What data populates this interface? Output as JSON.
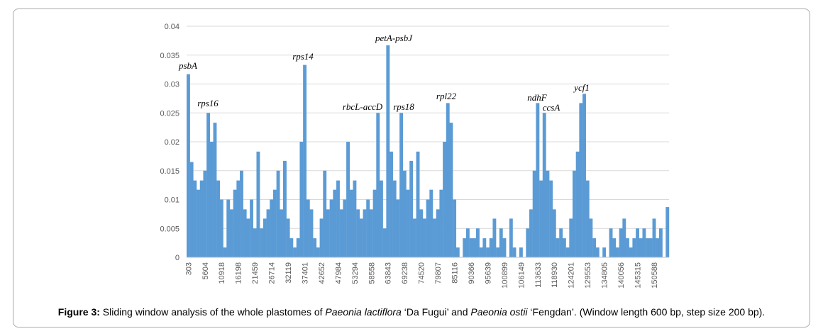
{
  "chart_data": {
    "type": "bar",
    "categories": [
      "303",
      null,
      null,
      null,
      null,
      "5604",
      null,
      null,
      null,
      null,
      "10918",
      null,
      null,
      null,
      null,
      "16198",
      null,
      null,
      null,
      null,
      "21459",
      null,
      null,
      null,
      null,
      "26714",
      null,
      null,
      null,
      null,
      "32119",
      null,
      null,
      null,
      null,
      "37401",
      null,
      null,
      null,
      null,
      "42652",
      null,
      null,
      null,
      null,
      "47984",
      null,
      null,
      null,
      null,
      "53294",
      null,
      null,
      null,
      null,
      "58558",
      null,
      null,
      null,
      null,
      "63843",
      null,
      null,
      null,
      null,
      "69238",
      null,
      null,
      null,
      null,
      "74520",
      null,
      null,
      null,
      null,
      "79807",
      null,
      null,
      null,
      null,
      "85116",
      null,
      null,
      null,
      null,
      "90366",
      null,
      null,
      null,
      null,
      "95639",
      null,
      null,
      null,
      null,
      "100899",
      null,
      null,
      null,
      null,
      "106149",
      null,
      null,
      null,
      null,
      "113633",
      null,
      null,
      null,
      null,
      "118930",
      null,
      null,
      null,
      null,
      "124201",
      null,
      null,
      null,
      null,
      "129553",
      null,
      null,
      null,
      null,
      "134805",
      null,
      null,
      null,
      null,
      "140056",
      null,
      null,
      null,
      null,
      "145315",
      null,
      null,
      null,
      null,
      "150588",
      null,
      null,
      null,
      null
    ],
    "values": [
      0.0317,
      0.0165,
      0.0133,
      0.0117,
      0.0133,
      0.015,
      0.025,
      0.02,
      0.0233,
      0.0133,
      0.01,
      0.0017,
      0.01,
      0.0083,
      0.0117,
      0.0133,
      0.015,
      0.0083,
      0.0067,
      0.01,
      0.005,
      0.0183,
      0.005,
      0.0067,
      0.0083,
      0.01,
      0.0117,
      0.015,
      0.0083,
      0.0167,
      0.0067,
      0.0033,
      0.0017,
      0.0033,
      0.02,
      0.0333,
      0.01,
      0.0083,
      0.0033,
      0.0017,
      0.0067,
      0.015,
      0.0083,
      0.01,
      0.0117,
      0.0133,
      0.0083,
      0.01,
      0.02,
      0.0117,
      0.0133,
      0.0083,
      0.0067,
      0.0083,
      0.01,
      0.0083,
      0.0117,
      0.025,
      0.0133,
      0.005,
      0.0367,
      0.0183,
      0.0133,
      0.01,
      0.025,
      0.015,
      0.0117,
      0.0167,
      0.0067,
      0.0183,
      0.0083,
      0.0067,
      0.01,
      0.0117,
      0.0067,
      0.0083,
      0.0117,
      0.02,
      0.0267,
      0.0233,
      0.01,
      0.0017,
      0,
      0.0033,
      0.005,
      0.0033,
      0.0033,
      0.005,
      0.0017,
      0.0033,
      0.0017,
      0.0033,
      0.0067,
      0.0017,
      0.005,
      0.0033,
      0,
      0.0067,
      0.0017,
      0,
      0.0017,
      0,
      0.005,
      0.0083,
      0.015,
      0.0267,
      0.0133,
      0.025,
      0.015,
      0.0133,
      0.0083,
      0.0033,
      0.005,
      0.0033,
      0.0017,
      0.0067,
      0.015,
      0.0183,
      0.0267,
      0.0283,
      0.0133,
      0.0067,
      0.0033,
      0.0017,
      0,
      0.0017,
      0,
      0.005,
      0.0033,
      0.0017,
      0.005,
      0.0067,
      0.0033,
      0.0017,
      0.0033,
      0.005,
      0.0033,
      0.005,
      0.0033,
      0.0033,
      0.0067,
      0.0033,
      0.005,
      0,
      0.0087
    ],
    "color": "#5b9bd5",
    "ylim": [
      0,
      0.04
    ],
    "yticks": [
      0,
      0.005,
      0.01,
      0.015,
      0.02,
      0.025,
      0.03,
      0.035,
      0.04
    ],
    "grid": true,
    "annotations": [
      "psbA",
      "rps16",
      "rps14",
      "rbcL-accD",
      "petA-psbJ",
      "rps18",
      "rpl22",
      "ndhF",
      "ccsA",
      "ycf1"
    ]
  },
  "caption": {
    "label": "Figure 3:",
    "parts": [
      "Sliding window analysis of the whole plastomes of ",
      "Paeonia lactiflora",
      " ‘Da Fugui’ and ",
      "Paeonia ostii",
      " ‘Fengdan’. (Window length 600 bp, step size 200 bp)."
    ]
  }
}
